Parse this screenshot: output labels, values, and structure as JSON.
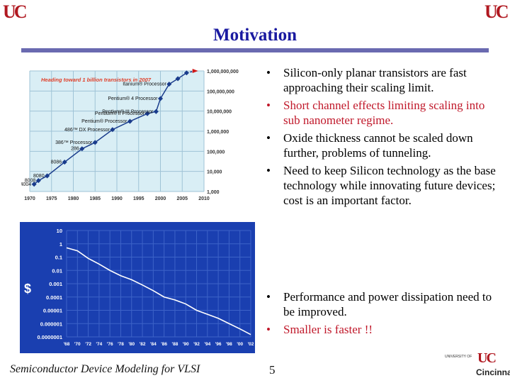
{
  "logo": {
    "left_mark": "UC",
    "right_mark": "UC"
  },
  "slide": {
    "title": "Motivation",
    "bullets_top": [
      {
        "text": "Silicon-only planar transistors are fast approaching their scaling limit.",
        "color": "#111111"
      },
      {
        "text": "Short channel effects limiting scaling into sub nanometer regime.",
        "color": "#c0182a"
      },
      {
        "text": "Oxide thickness cannot be scaled down further, problems of tunneling.",
        "color": "#111111"
      },
      {
        "text": "Need to keep Silicon technology as the base technology while innovating future devices; cost is an important factor.",
        "color": "#111111"
      }
    ],
    "bullets_bottom": [
      {
        "text": "Performance and power dissipation need to be improved.",
        "color": "#111111"
      },
      {
        "text": "Smaller is faster !!",
        "color": "#c0182a"
      }
    ]
  },
  "footer": {
    "course": "Semiconductor Device Modeling for VLSI",
    "page_number": "5",
    "university_small": "UNIVERSITY OF",
    "university_name": "Cincinnati",
    "university_mark": "UC"
  },
  "chart_data": [
    {
      "type": "scatter",
      "title": "Heading toward 1 billion transistors in 2007",
      "xlabel": "",
      "ylabel": "",
      "x_ticks": [
        "1970",
        "1975",
        "1980",
        "1985",
        "1990",
        "1995",
        "2000",
        "2005",
        "2010"
      ],
      "y_ticks": [
        "1,000",
        "10,000",
        "100,000",
        "1,000,000",
        "10,000,000",
        "100,000,000",
        "1,000,000,000"
      ],
      "xlim": [
        1970,
        2010
      ],
      "ylim": [
        1000,
        1000000000
      ],
      "y_scale": "log",
      "grid": true,
      "background": "#d9eef5",
      "series": [
        {
          "x": [
            1971,
            1972,
            1974,
            1978,
            1982,
            1985,
            1989,
            1993,
            1997,
            1999,
            2000,
            2002,
            2004,
            2006
          ],
          "y": [
            2300,
            3500,
            6000,
            29000,
            134000,
            275000,
            1200000,
            3100000,
            7500000,
            9500000,
            42000000,
            220000000,
            410000000,
            800000000
          ]
        }
      ],
      "labels": [
        {
          "text": "Itanium® Processor",
          "x": 2002,
          "y": 220000000
        },
        {
          "text": "Pentium® 4 Processor",
          "x": 2000,
          "y": 42000000
        },
        {
          "text": "Pentium® III Processor",
          "x": 1999,
          "y": 9500000
        },
        {
          "text": "Pentium® II Processor",
          "x": 1997,
          "y": 7500000
        },
        {
          "text": "Pentium® Processor",
          "x": 1993,
          "y": 3100000
        },
        {
          "text": "486™ DX Processor",
          "x": 1989,
          "y": 1200000
        },
        {
          "text": "386™ Processor",
          "x": 1985,
          "y": 275000
        },
        {
          "text": "286",
          "x": 1982,
          "y": 134000
        },
        {
          "text": "8086",
          "x": 1978,
          "y": 29000
        },
        {
          "text": "8080",
          "x": 1974,
          "y": 6000
        },
        {
          "text": "8008",
          "x": 1972,
          "y": 3500
        },
        {
          "text": "4004",
          "x": 1971,
          "y": 2300
        }
      ]
    },
    {
      "type": "line",
      "title": "",
      "ylabel": "$",
      "xlabel": "",
      "x_ticks": [
        "'68",
        "'70",
        "'72",
        "'74",
        "'76",
        "'78",
        "'80",
        "'82",
        "'84",
        "'86",
        "'88",
        "'90",
        "'92",
        "'94",
        "'96",
        "'98",
        "'00",
        "'02"
      ],
      "y_ticks": [
        "0.0000001",
        "0.000001",
        "0.00001",
        "0.0001",
        "0.001",
        "0.01",
        "0.1",
        "1",
        "10"
      ],
      "xlim": [
        1968,
        2002
      ],
      "ylim": [
        1e-07,
        10
      ],
      "y_scale": "log",
      "grid": true,
      "background": "#1a3fb0",
      "series": [
        {
          "x": [
            1968,
            1970,
            1972,
            1974,
            1976,
            1978,
            1980,
            1982,
            1984,
            1986,
            1988,
            1990,
            1992,
            1994,
            1996,
            1998,
            2000,
            2002
          ],
          "y": [
            0.5,
            0.3,
            0.08,
            0.03,
            0.01,
            0.004,
            0.002,
            0.0008,
            0.0003,
            0.0001,
            6e-05,
            3e-05,
            1e-05,
            5e-06,
            2.5e-06,
            1e-06,
            4e-07,
            1.5e-07
          ]
        }
      ]
    }
  ]
}
